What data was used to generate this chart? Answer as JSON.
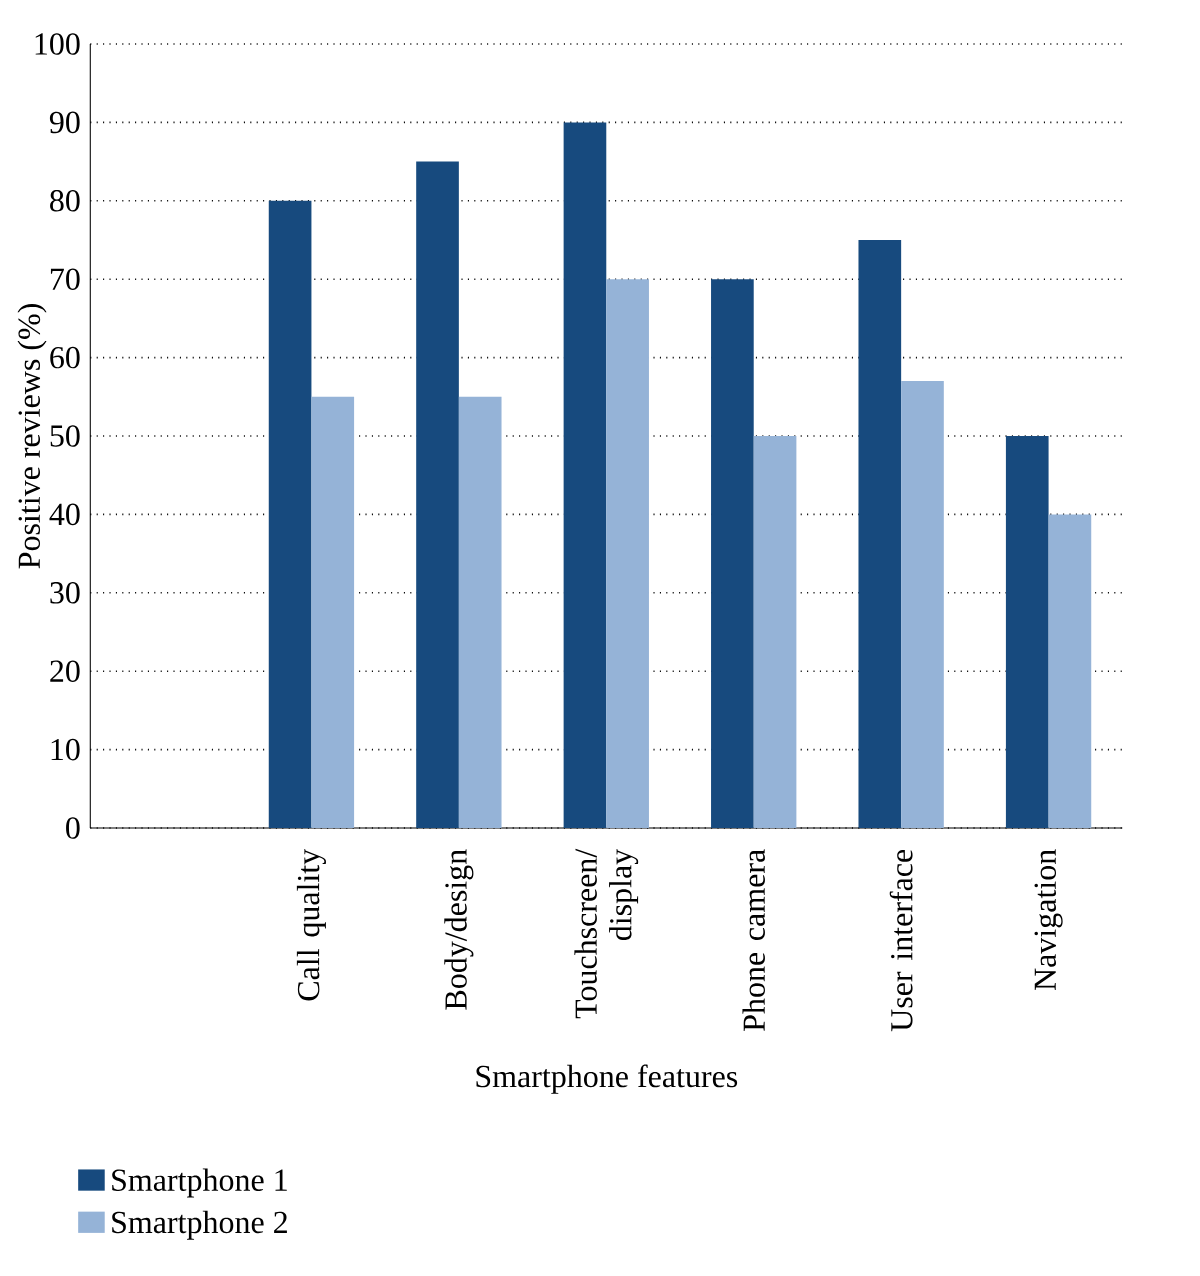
{
  "chart_data": {
    "type": "bar",
    "xlabel": "Smartphone features",
    "ylabel": "Positive reviews (%)",
    "categories": [
      null,
      "Call quality",
      "Body/design",
      "Touchscreen/ display",
      "Phone camera",
      "User interface",
      "Navigation"
    ],
    "series": [
      {
        "name": "Smartphone 1",
        "color": "#174a7e",
        "values": [
          null,
          80,
          85,
          90,
          70,
          75,
          50
        ]
      },
      {
        "name": "Smartphone 2",
        "color": "#95b3d7",
        "values": [
          null,
          55,
          55,
          70,
          50,
          57,
          40
        ]
      }
    ],
    "ylim": [
      0,
      100
    ],
    "yticks": [
      0,
      10,
      20,
      30,
      40,
      50,
      60,
      70,
      80,
      90,
      100
    ],
    "grid": "y",
    "legend": "bottom"
  }
}
